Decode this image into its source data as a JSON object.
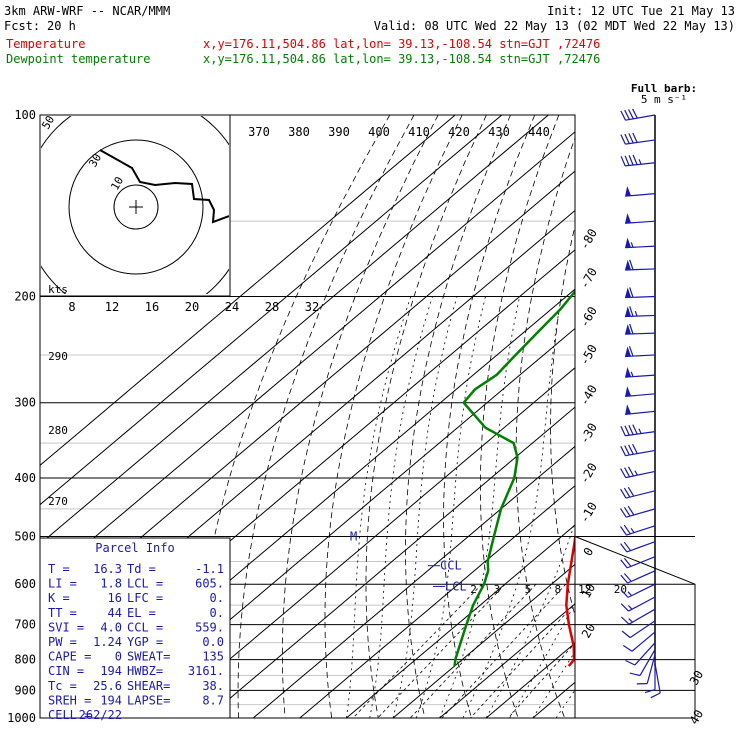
{
  "header": {
    "model": "3km ARW-WRF -- NCAR/MMM",
    "init": "Init: 12 UTC Tue 21 May 13",
    "fcst_label": "Fcst:",
    "fcst_value": "20 h",
    "valid": "Valid: 08 UTC Wed 22 May 13 (02 MDT Wed 22 May 13)",
    "lines": [
      {
        "label": "Temperature",
        "info": "x,y=176.11,504.86   lat,lon= 39.13,-108.54  stn=GJT ,72476",
        "color": "#e00000"
      },
      {
        "label": "Dewpoint temperature",
        "info": "x,y=176.11,504.86   lat,lon= 39.13,-108.54  stn=GJT ,72476",
        "color": "#008000"
      }
    ]
  },
  "barb_legend": {
    "line1": "Full barb:",
    "line2": "5 m s⁻¹"
  },
  "hodograph": {
    "units": "kts",
    "ring_labels": [
      "10",
      "30",
      "50"
    ],
    "speed_labels": [
      "8",
      "12",
      "16",
      "20",
      "24",
      "28",
      "32"
    ]
  },
  "parcel": {
    "title": "Parcel Info",
    "rows": [
      [
        "T  =",
        "16.3",
        "Td =",
        "-1.1"
      ],
      [
        "LI =",
        "1.8",
        "LCL =",
        "605."
      ],
      [
        "K  =",
        "16",
        "LFC =",
        "0."
      ],
      [
        "TT =",
        "44",
        "EL  =",
        "0."
      ],
      [
        "SVI =",
        "4.0",
        "CCL =",
        "559."
      ],
      [
        "PW =",
        "1.24",
        "YGP =",
        "0.0"
      ],
      [
        "CAPE =",
        "0",
        "SWEAT=",
        "135"
      ],
      [
        "CIN  =",
        "194",
        "HWBZ=",
        "3161."
      ],
      [
        "Tc =",
        "25.6",
        "SHEAR=",
        "38."
      ],
      [
        "SREH =",
        "194",
        "LAPSE=",
        "8.7"
      ],
      [
        "CELL =",
        "262/22",
        "",
        ""
      ]
    ]
  },
  "chart_data": {
    "type": "line",
    "title": "",
    "xlabel": "",
    "ylabel": "",
    "pressure_ticks": [
      100,
      200,
      300,
      400,
      500,
      600,
      700,
      800,
      900,
      1000
    ],
    "isotherm_labels": [
      -80,
      -70,
      -60,
      -50,
      -40,
      -30,
      -20,
      -10,
      0,
      10,
      20,
      30,
      40
    ],
    "theta_labels": [
      370,
      380,
      390,
      400,
      410,
      420,
      430,
      440
    ],
    "theta_left_labels": [
      290,
      280,
      270
    ],
    "mixing_ratio_labels": [
      2,
      3,
      5,
      8,
      12,
      20
    ],
    "levels": {
      "ccl": {
        "label": "CCL",
        "p": 559
      },
      "lcl": {
        "label": "LCL",
        "p": 605
      },
      "marker": {
        "label": "M",
        "p": 500
      }
    },
    "series": [
      {
        "name": "Temperature",
        "color": "#e00000",
        "points": [
          [
            820,
            24.5
          ],
          [
            800,
            24.0
          ],
          [
            760,
            20.5
          ],
          [
            700,
            14.0
          ],
          [
            650,
            8.5
          ],
          [
            600,
            3.5
          ],
          [
            550,
            -1.5
          ],
          [
            500,
            -7.0
          ],
          [
            450,
            -12.5
          ],
          [
            400,
            -18.5
          ],
          [
            350,
            -26.0
          ],
          [
            300,
            -34.5
          ],
          [
            270,
            -41.0
          ],
          [
            250,
            -45.5
          ],
          [
            225,
            -50.5
          ],
          [
            210,
            -53.0
          ],
          [
            200,
            -53.5
          ],
          [
            180,
            -54.5
          ],
          [
            160,
            -56.0
          ],
          [
            150,
            -58.0
          ],
          [
            140,
            -60.0
          ],
          [
            130,
            -62.5
          ],
          [
            120,
            -65.0
          ],
          [
            112,
            -66.5
          ],
          [
            105,
            -69.0
          ],
          [
            100,
            -70.5
          ]
        ]
      },
      {
        "name": "Dewpoint temperature",
        "color": "#008000",
        "points": [
          [
            820,
            0.0
          ],
          [
            800,
            -1.5
          ],
          [
            760,
            -4.0
          ],
          [
            700,
            -8.0
          ],
          [
            650,
            -11.5
          ],
          [
            600,
            -14.5
          ],
          [
            570,
            -17.0
          ],
          [
            550,
            -19.5
          ],
          [
            500,
            -24.5
          ],
          [
            450,
            -30.0
          ],
          [
            400,
            -35.0
          ],
          [
            370,
            -39.5
          ],
          [
            350,
            -44.0
          ],
          [
            330,
            -54.0
          ],
          [
            300,
            -65.0
          ],
          [
            285,
            -66.0
          ],
          [
            270,
            -65.0
          ],
          [
            250,
            -66.0
          ],
          [
            230,
            -67.0
          ],
          [
            210,
            -68.0
          ],
          [
            200,
            -69.0
          ],
          [
            180,
            -71.0
          ],
          [
            160,
            -73.5
          ],
          [
            140,
            -76.0
          ],
          [
            125,
            -78.5
          ],
          [
            112,
            -80.5
          ],
          [
            100,
            -82.5
          ]
        ]
      }
    ],
    "wind_barbs": [
      {
        "p": 100,
        "dir": 260,
        "kt": 38
      },
      {
        "p": 110,
        "dir": 262,
        "kt": 42
      },
      {
        "p": 120,
        "dir": 264,
        "kt": 45
      },
      {
        "p": 135,
        "dir": 265,
        "kt": 48
      },
      {
        "p": 150,
        "dir": 266,
        "kt": 52
      },
      {
        "p": 165,
        "dir": 267,
        "kt": 55
      },
      {
        "p": 180,
        "dir": 268,
        "kt": 58
      },
      {
        "p": 200,
        "dir": 268,
        "kt": 62
      },
      {
        "p": 215,
        "dir": 268,
        "kt": 64
      },
      {
        "p": 230,
        "dir": 268,
        "kt": 62
      },
      {
        "p": 250,
        "dir": 267,
        "kt": 58
      },
      {
        "p": 270,
        "dir": 266,
        "kt": 55
      },
      {
        "p": 290,
        "dir": 265,
        "kt": 52
      },
      {
        "p": 310,
        "dir": 264,
        "kt": 48
      },
      {
        "p": 335,
        "dir": 262,
        "kt": 44
      },
      {
        "p": 360,
        "dir": 260,
        "kt": 40
      },
      {
        "p": 390,
        "dir": 258,
        "kt": 36
      },
      {
        "p": 420,
        "dir": 256,
        "kt": 32
      },
      {
        "p": 450,
        "dir": 254,
        "kt": 28
      },
      {
        "p": 480,
        "dir": 252,
        "kt": 24
      },
      {
        "p": 510,
        "dir": 250,
        "kt": 22
      },
      {
        "p": 540,
        "dir": 248,
        "kt": 20
      },
      {
        "p": 570,
        "dir": 246,
        "kt": 18
      },
      {
        "p": 600,
        "dir": 244,
        "kt": 16
      },
      {
        "p": 630,
        "dir": 242,
        "kt": 14
      },
      {
        "p": 660,
        "dir": 240,
        "kt": 13
      },
      {
        "p": 690,
        "dir": 236,
        "kt": 12
      },
      {
        "p": 720,
        "dir": 230,
        "kt": 11
      },
      {
        "p": 750,
        "dir": 222,
        "kt": 10
      },
      {
        "p": 770,
        "dir": 210,
        "kt": 10
      },
      {
        "p": 785,
        "dir": 195,
        "kt": 11
      },
      {
        "p": 800,
        "dir": 180,
        "kt": 12
      },
      {
        "p": 812,
        "dir": 170,
        "kt": 12
      }
    ]
  }
}
